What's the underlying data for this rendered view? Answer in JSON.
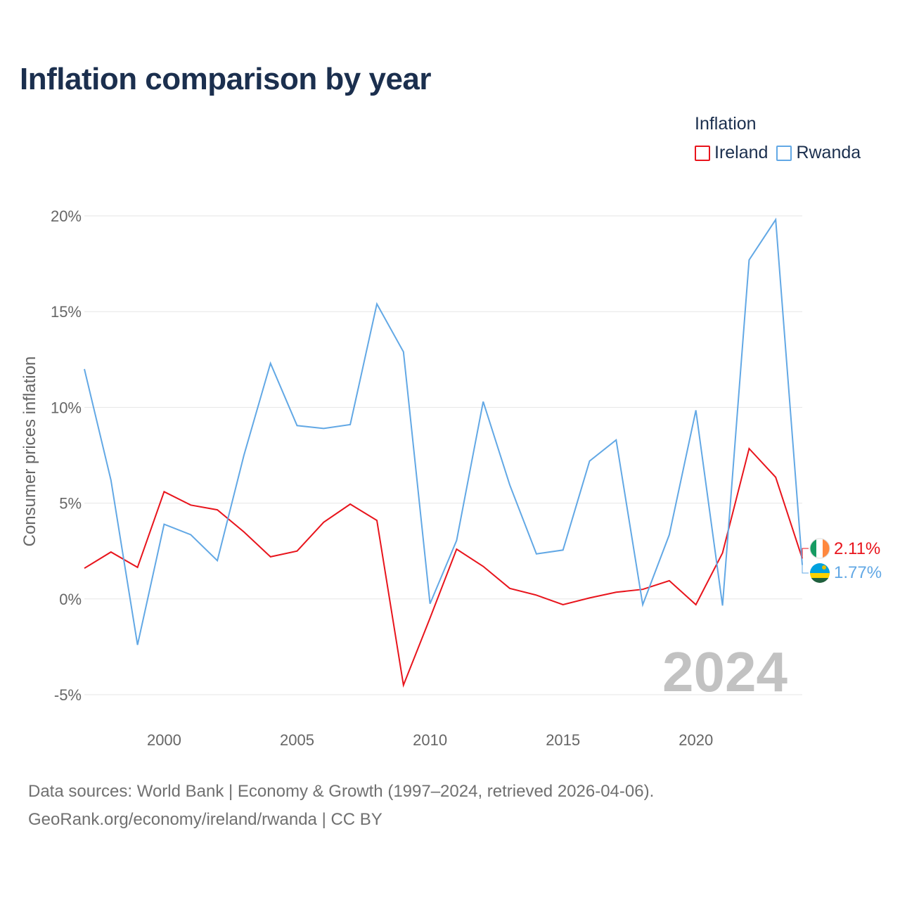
{
  "title": "Inflation comparison by year",
  "legend": {
    "title": "Inflation",
    "items": [
      {
        "label": "Ireland",
        "color": "#e8141c"
      },
      {
        "label": "Rwanda",
        "color": "#62a8e5"
      }
    ]
  },
  "source": {
    "line1": "Data sources: World Bank | Economy & Growth (1997–2024, retrieved 2026-04-06).",
    "line2": "GeoRank.org/economy/ireland/rwanda | CC BY"
  },
  "chart_data": {
    "type": "line",
    "title": "Inflation comparison by year",
    "xlabel": "",
    "ylabel": "Consumer prices inflation",
    "xlim": [
      1997,
      2024
    ],
    "ylim": [
      -5,
      20
    ],
    "y_ticks": [
      -5,
      0,
      5,
      10,
      15,
      20
    ],
    "y_tick_labels": [
      "-5%",
      "0%",
      "5%",
      "10%",
      "15%",
      "20%"
    ],
    "x_ticks": [
      2000,
      2005,
      2010,
      2015,
      2020
    ],
    "x_tick_labels": [
      "2000",
      "2005",
      "2010",
      "2015",
      "2020"
    ],
    "grid": true,
    "legend_position": "top-right",
    "year_watermark": "2024",
    "x": [
      1997,
      1998,
      1999,
      2000,
      2001,
      2002,
      2003,
      2004,
      2005,
      2006,
      2007,
      2008,
      2009,
      2010,
      2011,
      2012,
      2013,
      2014,
      2015,
      2016,
      2017,
      2018,
      2019,
      2020,
      2021,
      2022,
      2023,
      2024
    ],
    "series": [
      {
        "name": "Ireland",
        "color": "#e8141c",
        "flag": "ireland-flag",
        "end_label": "2.11%",
        "values": [
          1.6,
          2.45,
          1.65,
          5.6,
          4.9,
          4.65,
          3.5,
          2.2,
          2.5,
          4.0,
          4.95,
          4.1,
          -4.5,
          -1.0,
          2.6,
          1.7,
          0.55,
          0.2,
          -0.3,
          0.05,
          0.35,
          0.5,
          0.95,
          -0.3,
          2.4,
          7.85,
          6.35,
          2.11
        ]
      },
      {
        "name": "Rwanda",
        "color": "#62a8e5",
        "flag": "rwanda-flag",
        "end_label": "1.77%",
        "values": [
          12.0,
          6.2,
          -2.4,
          3.9,
          3.35,
          2.0,
          7.5,
          12.3,
          9.05,
          8.9,
          9.1,
          15.4,
          12.9,
          -0.25,
          3.05,
          10.3,
          5.95,
          2.35,
          2.55,
          7.2,
          8.3,
          -0.3,
          3.35,
          9.85,
          -0.35,
          17.7,
          19.8,
          1.77
        ]
      }
    ]
  }
}
